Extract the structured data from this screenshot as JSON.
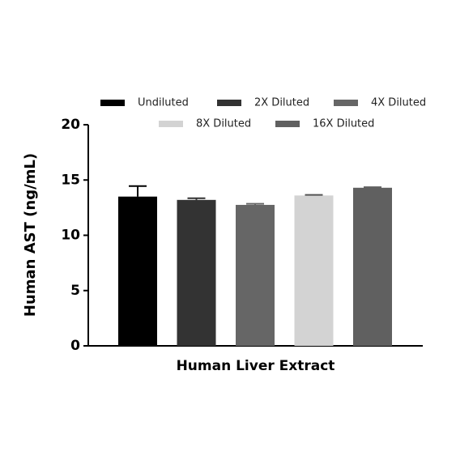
{
  "chart_data": {
    "type": "bar",
    "categories": [
      "Human Liver Extract"
    ],
    "ylabel": "Human AST (ng/mL)",
    "series": [
      {
        "name": "Undiluted",
        "color": "#000000",
        "values": [
          13.5
        ],
        "errors": [
          0.95
        ]
      },
      {
        "name": "2X Diluted",
        "color": "#333333",
        "values": [
          13.2
        ],
        "errors": [
          0.15
        ]
      },
      {
        "name": "4X Diluted",
        "color": "#666666",
        "values": [
          12.75
        ],
        "errors": [
          0.1
        ]
      },
      {
        "name": "8X Diluted",
        "color": "#d3d3d3",
        "values": [
          13.6
        ],
        "errors": [
          0.05
        ]
      },
      {
        "name": "16X Diluted",
        "color": "#606060",
        "values": [
          14.3
        ],
        "errors": [
          0.05
        ]
      }
    ],
    "ylim": [
      0,
      20
    ],
    "yticks": [
      0,
      5,
      10,
      15,
      20
    ],
    "grid": false
  }
}
